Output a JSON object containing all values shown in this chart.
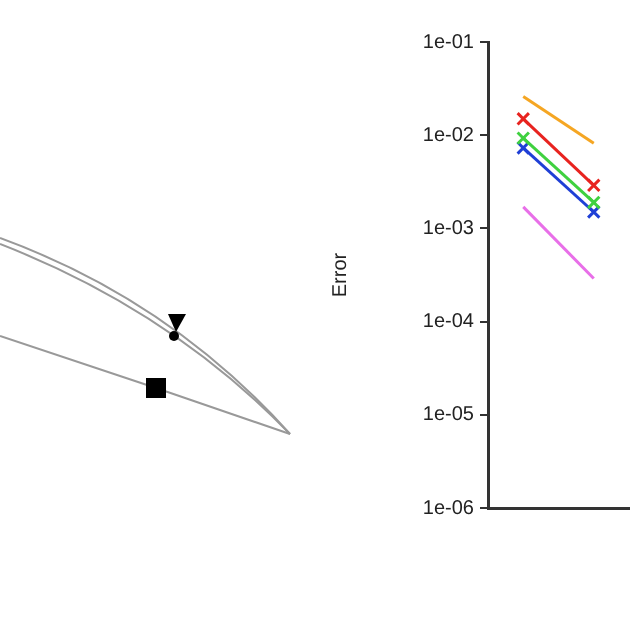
{
  "chart_data": {
    "type": "line",
    "ylabel": "Error",
    "log": "y",
    "categories": [
      null,
      null
    ],
    "ylim": [
      1e-06,
      0.1
    ],
    "yticks": [
      {
        "value": 1e-06,
        "label": "1e-06"
      },
      {
        "value": 1e-05,
        "label": "1e-05"
      },
      {
        "value": 0.0001,
        "label": "1e-04"
      },
      {
        "value": 0.001,
        "label": "1e-03"
      },
      {
        "value": 0.01,
        "label": "1e-02"
      },
      {
        "value": 0.1,
        "label": "1e-01"
      }
    ],
    "tick_labels": "y",
    "grid": false,
    "legend": false,
    "series": [
      {
        "color": "#f5a623",
        "values": [
          0.026,
          0.0082
        ],
        "marker": "none"
      },
      {
        "color": "#e8231f",
        "values": [
          0.015,
          0.0029
        ],
        "marker": "cross"
      },
      {
        "color": "#3fd13f",
        "values": [
          0.0093,
          0.0019
        ],
        "marker": "cross"
      },
      {
        "color": "#1f3fd6",
        "values": [
          0.0073,
          0.0015
        ],
        "marker": "cross"
      },
      {
        "color": "#e86fe8",
        "values": [
          0.0017,
          0.00029
        ],
        "marker": "none"
      }
    ]
  }
}
